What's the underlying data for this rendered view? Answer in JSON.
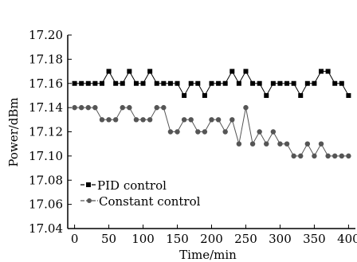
{
  "chart_data": {
    "type": "line",
    "xlabel": "Time/min",
    "ylabel": "Power/dBm",
    "xlim": [
      -10,
      410
    ],
    "ylim": [
      17.04,
      17.2
    ],
    "xticks": [
      0,
      50,
      100,
      150,
      200,
      250,
      300,
      350,
      400
    ],
    "yticks": [
      17.04,
      17.06,
      17.08,
      17.1,
      17.12,
      17.14,
      17.16,
      17.18,
      17.2
    ],
    "ytick_labels": [
      "17.04",
      "17.06",
      "17.08",
      "17.10",
      "17.12",
      "17.14",
      "17.16",
      "17.18",
      "17.20"
    ],
    "x": [
      0,
      10,
      20,
      30,
      40,
      50,
      60,
      70,
      80,
      90,
      100,
      110,
      120,
      130,
      140,
      150,
      160,
      170,
      180,
      190,
      200,
      210,
      220,
      230,
      240,
      250,
      260,
      270,
      280,
      290,
      300,
      310,
      320,
      330,
      340,
      350,
      360,
      370,
      380,
      390,
      400
    ],
    "series": [
      {
        "name": "PID  control",
        "marker": "square",
        "color": "#000000",
        "values": [
          17.16,
          17.16,
          17.16,
          17.16,
          17.16,
          17.17,
          17.16,
          17.16,
          17.17,
          17.16,
          17.16,
          17.17,
          17.16,
          17.16,
          17.16,
          17.16,
          17.15,
          17.16,
          17.16,
          17.15,
          17.16,
          17.16,
          17.16,
          17.17,
          17.16,
          17.17,
          17.16,
          17.16,
          17.15,
          17.16,
          17.16,
          17.16,
          17.16,
          17.15,
          17.16,
          17.16,
          17.17,
          17.17,
          17.16,
          17.16,
          17.15
        ]
      },
      {
        "name": "Constant control",
        "marker": "circle",
        "color": "#555555",
        "values": [
          17.14,
          17.14,
          17.14,
          17.14,
          17.13,
          17.13,
          17.13,
          17.14,
          17.14,
          17.13,
          17.13,
          17.13,
          17.14,
          17.14,
          17.12,
          17.12,
          17.13,
          17.13,
          17.12,
          17.12,
          17.13,
          17.13,
          17.12,
          17.13,
          17.11,
          17.14,
          17.11,
          17.12,
          17.11,
          17.12,
          17.11,
          17.11,
          17.1,
          17.1,
          17.11,
          17.1,
          17.11,
          17.1,
          17.1,
          17.1,
          17.1
        ]
      }
    ],
    "legend_position": "bottom-left",
    "grid": false
  }
}
